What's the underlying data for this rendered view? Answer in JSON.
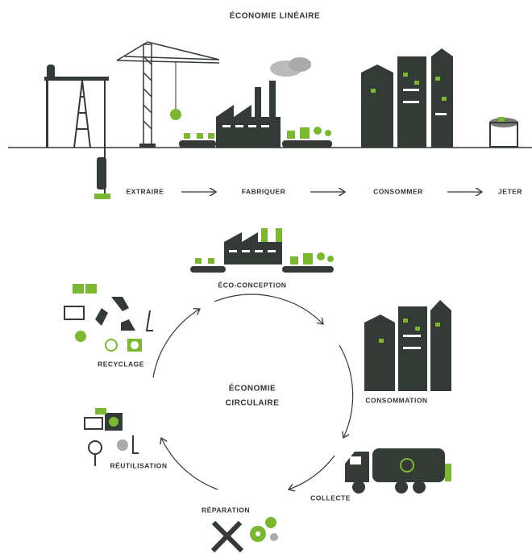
{
  "title": "ÉCONOMIE LINÉAIRE",
  "linear": {
    "steps": [
      "EXTRAIRE",
      "FABRIQUER",
      "CONSOMMER",
      "JETER"
    ]
  },
  "circular": {
    "title_lines": [
      "ÉCONOMIE",
      "CIRCULAIRE"
    ],
    "steps": [
      "ÉCO-CONCEPTION",
      "CONSOMMATION",
      "COLLECTE",
      "RÉPARATION",
      "RÉUTILISATION",
      "RECYCLAGE"
    ]
  }
}
